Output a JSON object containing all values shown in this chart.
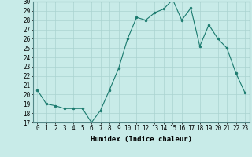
{
  "x": [
    0,
    1,
    2,
    3,
    4,
    5,
    6,
    7,
    8,
    9,
    10,
    11,
    12,
    13,
    14,
    15,
    16,
    17,
    18,
    19,
    20,
    21,
    22,
    23
  ],
  "y": [
    20.5,
    19.0,
    18.8,
    18.5,
    18.5,
    18.5,
    17.0,
    18.3,
    20.5,
    22.8,
    26.0,
    28.3,
    28.0,
    28.8,
    29.2,
    30.2,
    28.0,
    29.3,
    25.2,
    27.5,
    26.0,
    25.0,
    22.3,
    20.2
  ],
  "line_color": "#1a7a6e",
  "marker": "o",
  "marker_size": 2,
  "bg_color": "#c8ebe8",
  "grid_color": "#aad4d0",
  "xlabel": "Humidex (Indice chaleur)",
  "ylim": [
    17,
    30
  ],
  "xlim": [
    -0.5,
    23.5
  ],
  "yticks": [
    17,
    18,
    19,
    20,
    21,
    22,
    23,
    24,
    25,
    26,
    27,
    28,
    29,
    30
  ],
  "xticks": [
    0,
    1,
    2,
    3,
    4,
    5,
    6,
    7,
    8,
    9,
    10,
    11,
    12,
    13,
    14,
    15,
    16,
    17,
    18,
    19,
    20,
    21,
    22,
    23
  ],
  "tick_fontsize": 5.5,
  "label_fontsize": 6.5
}
